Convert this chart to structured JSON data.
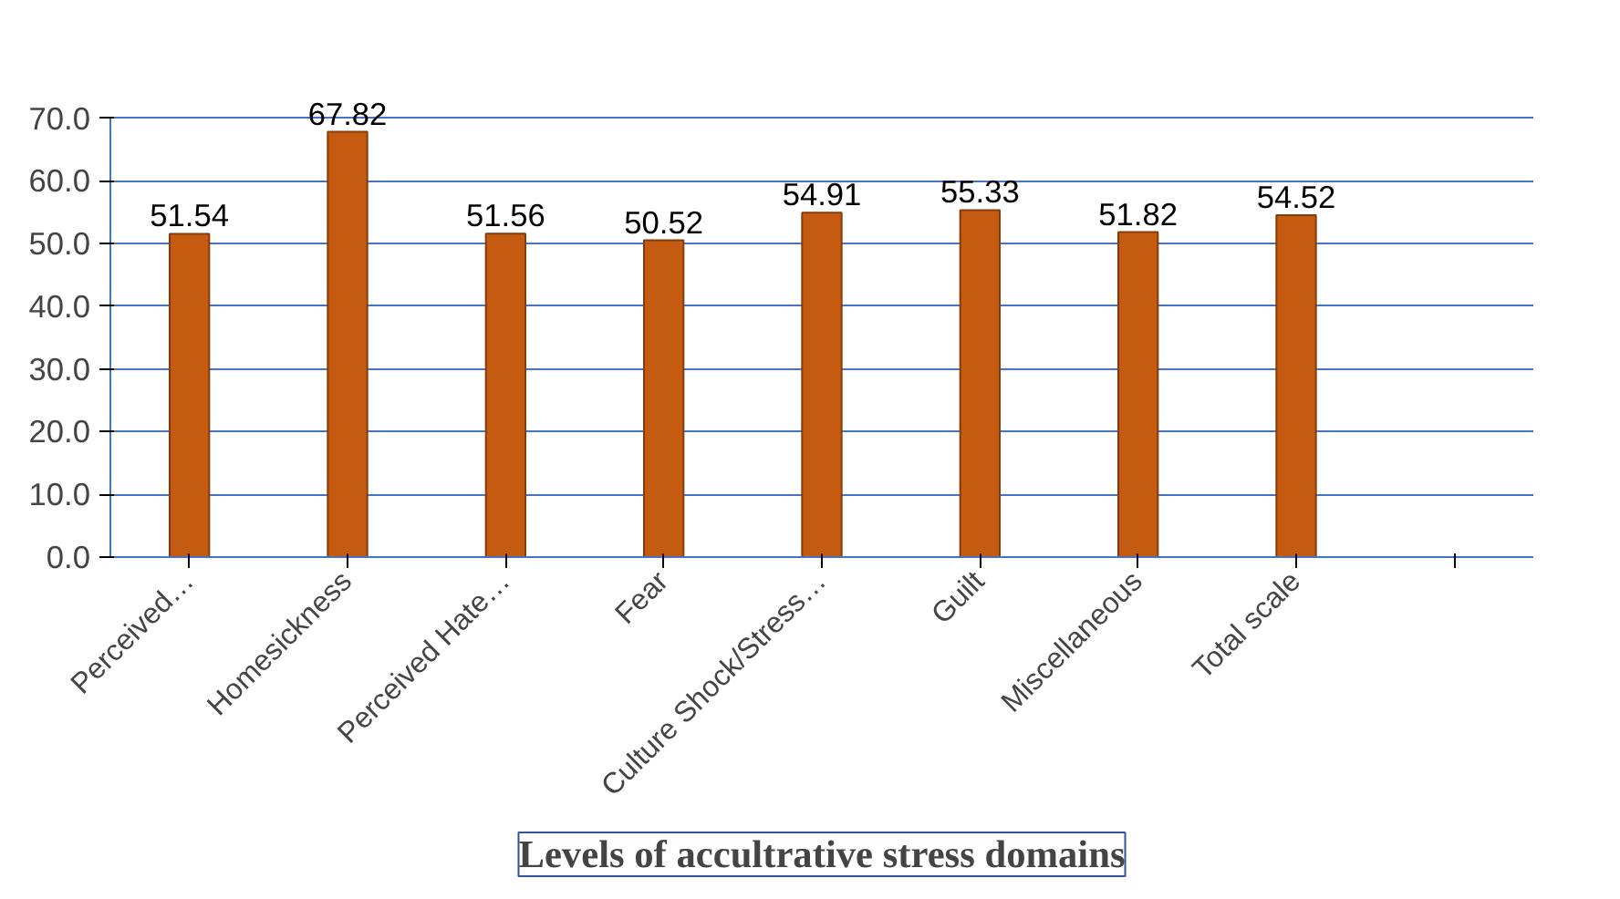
{
  "chart_data": {
    "type": "bar",
    "title": "Levels of accultrative stress domains",
    "categories": [
      "Perceived…",
      "Homesickness",
      "Perceived Hate…",
      "Fear",
      "Culture Shock/Stress…",
      "Guilt",
      "Miscellaneous",
      "Total scale",
      null
    ],
    "values": [
      51.54,
      67.82,
      51.56,
      50.52,
      54.91,
      55.33,
      51.82,
      54.52,
      null
    ],
    "color": "#c55a11",
    "data_labels": true,
    "ylim": [
      0,
      70
    ],
    "yticks": [
      {
        "value": 0,
        "label": "0.0"
      },
      {
        "value": 10,
        "label": "10.0"
      },
      {
        "value": 20,
        "label": "20.0"
      },
      {
        "value": 30,
        "label": "30.0"
      },
      {
        "value": 40,
        "label": "40.0"
      },
      {
        "value": 50,
        "label": "50.0"
      },
      {
        "value": 60,
        "label": "60.0"
      },
      {
        "value": 70,
        "label": "70.0"
      }
    ],
    "grid": "y"
  }
}
